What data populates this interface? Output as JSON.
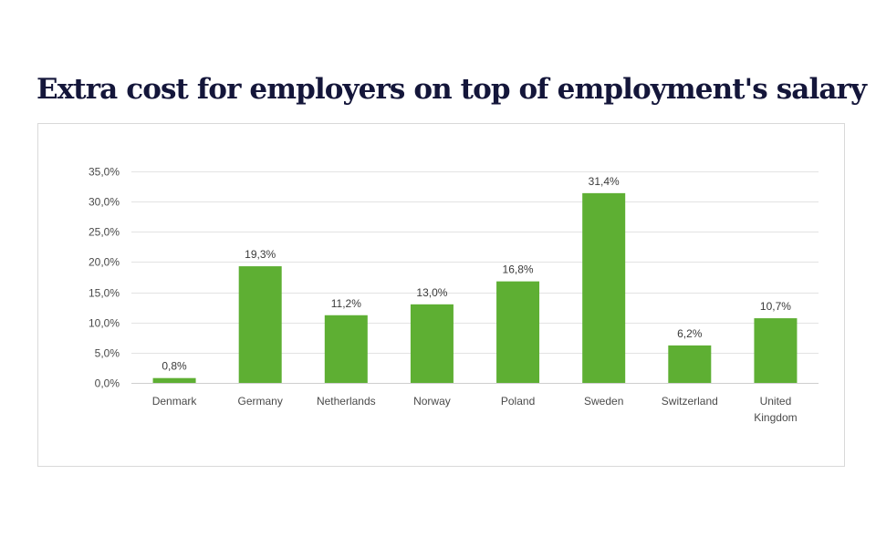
{
  "page": {
    "title": "Extra cost for employers on top of employment's salary"
  },
  "chart_data": {
    "type": "bar",
    "title": "",
    "xlabel": "",
    "ylabel": "",
    "categories": [
      "Denmark",
      "Germany",
      "Netherlands",
      "Norway",
      "Poland",
      "Sweden",
      "Switzerland",
      "United Kingdom"
    ],
    "category_lines": [
      [
        "Denmark"
      ],
      [
        "Germany"
      ],
      [
        "Netherlands"
      ],
      [
        "Norway"
      ],
      [
        "Poland"
      ],
      [
        "Sweden"
      ],
      [
        "Switzerland"
      ],
      [
        "United",
        "Kingdom"
      ]
    ],
    "values": [
      0.8,
      19.3,
      11.2,
      13.0,
      16.8,
      31.4,
      6.2,
      10.7
    ],
    "data_labels": [
      "0,8%",
      "19,3%",
      "11,2%",
      "13,0%",
      "16,8%",
      "31,4%",
      "6,2%",
      "10,7%"
    ],
    "ylim": [
      0,
      35
    ],
    "yticks": [
      0,
      5,
      10,
      15,
      20,
      25,
      30,
      35
    ],
    "ytick_labels": [
      "0,0%",
      "5,0%",
      "10,0%",
      "15,0%",
      "20,0%",
      "25,0%",
      "30,0%",
      "35,0%"
    ],
    "grid": true,
    "legend": "none",
    "bar_color": "#5eaf33"
  }
}
